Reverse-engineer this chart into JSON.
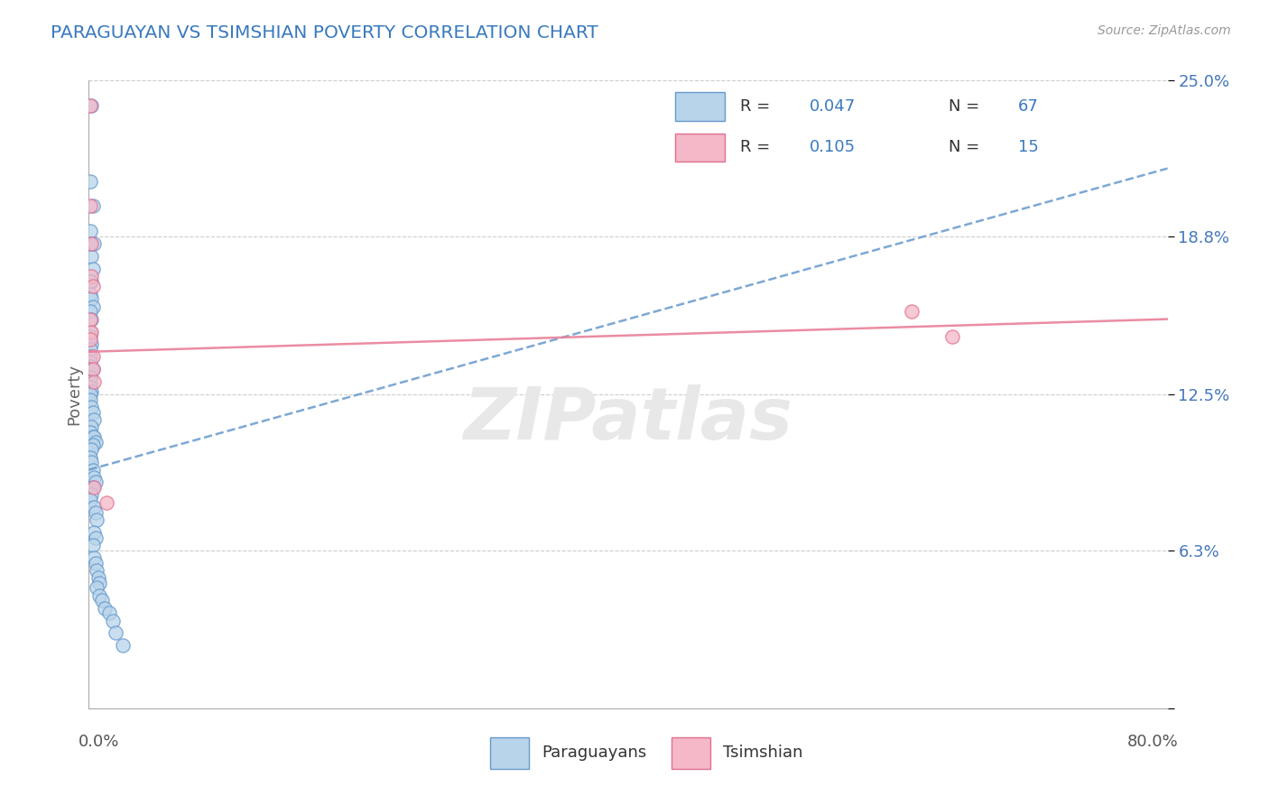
{
  "title": "PARAGUAYAN VS TSIMSHIAN POVERTY CORRELATION CHART",
  "source": "Source: ZipAtlas.com",
  "ylabel": "Poverty",
  "watermark": "ZIPatlas",
  "xlim": [
    0.0,
    0.8
  ],
  "ylim": [
    0.0,
    0.25
  ],
  "ytick_vals": [
    0.0,
    0.063,
    0.125,
    0.188,
    0.25
  ],
  "ytick_labels": [
    "",
    "6.3%",
    "12.5%",
    "18.8%",
    "25.0%"
  ],
  "color_paraguayan_fill": "#b8d4ea",
  "color_paraguayan_edge": "#6699cc",
  "color_tsimshian_fill": "#f5b8c8",
  "color_tsimshian_edge": "#e07090",
  "line_color_paraguayan": "#6699cc",
  "line_color_tsimshian": "#e88098",
  "background_color": "#ffffff",
  "grid_color": "#cccccc",
  "paraguayan_x": [
    0.002,
    0.001,
    0.001,
    0.003,
    0.002,
    0.001,
    0.004,
    0.003,
    0.002,
    0.001,
    0.001,
    0.002,
    0.003,
    0.001,
    0.002,
    0.001,
    0.001,
    0.002,
    0.001,
    0.001,
    0.001,
    0.001,
    0.002,
    0.003,
    0.001,
    0.001,
    0.001,
    0.002,
    0.001,
    0.001,
    0.002,
    0.003,
    0.004,
    0.002,
    0.001,
    0.003,
    0.004,
    0.005,
    0.003,
    0.002,
    0.001,
    0.002,
    0.003,
    0.004,
    0.005,
    0.003,
    0.002,
    0.001,
    0.004,
    0.005,
    0.006,
    0.004,
    0.005,
    0.003,
    0.004,
    0.005,
    0.006,
    0.007,
    0.008,
    0.006,
    0.008,
    0.01,
    0.012,
    0.015,
    0.018,
    0.02,
    0.025
  ],
  "paraguayan_y": [
    0.24,
    0.21,
    0.19,
    0.2,
    0.18,
    0.185,
    0.185,
    0.175,
    0.17,
    0.17,
    0.165,
    0.163,
    0.16,
    0.158,
    0.155,
    0.15,
    0.148,
    0.145,
    0.143,
    0.14,
    0.138,
    0.136,
    0.135,
    0.135,
    0.132,
    0.13,
    0.128,
    0.126,
    0.125,
    0.123,
    0.12,
    0.118,
    0.115,
    0.112,
    0.11,
    0.108,
    0.108,
    0.106,
    0.105,
    0.103,
    0.1,
    0.098,
    0.095,
    0.092,
    0.09,
    0.088,
    0.085,
    0.083,
    0.08,
    0.078,
    0.075,
    0.07,
    0.068,
    0.065,
    0.06,
    0.058,
    0.055,
    0.052,
    0.05,
    0.048,
    0.045,
    0.043,
    0.04,
    0.038,
    0.035,
    0.03,
    0.025
  ],
  "tsimshian_x": [
    0.001,
    0.001,
    0.002,
    0.002,
    0.003,
    0.001,
    0.002,
    0.001,
    0.003,
    0.003,
    0.004,
    0.004,
    0.013,
    0.61,
    0.64
  ],
  "tsimshian_y": [
    0.24,
    0.2,
    0.185,
    0.172,
    0.168,
    0.155,
    0.15,
    0.147,
    0.14,
    0.135,
    0.13,
    0.088,
    0.082,
    0.158,
    0.148
  ],
  "par_trend_x": [
    0.0,
    0.8
  ],
  "par_trend_y": [
    0.095,
    0.215
  ],
  "tsim_trend_x": [
    0.0,
    0.8
  ],
  "tsim_trend_y": [
    0.142,
    0.155
  ]
}
